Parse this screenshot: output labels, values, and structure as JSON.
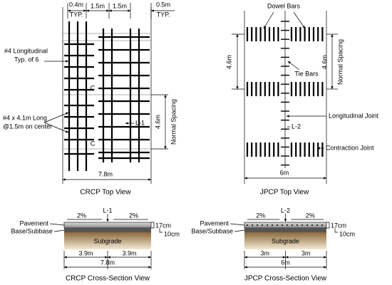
{
  "crcp_top": {
    "dim_left": "0.4m",
    "typ_left": "TYP.",
    "dim_mid_a": "1.5m",
    "dim_mid_b": "1.5m",
    "dim_right": "0.5m",
    "typ_right": "TYP.",
    "longitudinal": [
      "#4 Longitudinal",
      "Typ. of 6"
    ],
    "c_upper": "C",
    "c_lower": "C",
    "section": "L-1",
    "transverse": [
      "#4 x 4.1m Long",
      "@1.5m on center"
    ],
    "spacing_dim": "4.6m",
    "spacing_label": "Normal Spacing",
    "width": "7.8m",
    "caption": "CRCP Top View"
  },
  "jpcp_top": {
    "dowel": "Dowel Bars",
    "spacing_dim_left": "4.6m",
    "tie": "Tie Bars",
    "spacing_dim_right": "4.6m",
    "spacing_label": "Normal Spacing",
    "long_joint": "Longitudinal Joint",
    "section": "L-2",
    "contraction": "Contraction Joint",
    "width": "6m",
    "caption": "JPCP Top View"
  },
  "crcp_section": {
    "section": "L-1",
    "slope_left": "2%",
    "slope_right": "2%",
    "pavement": "Pavement",
    "base": "Base/Subbase",
    "pavement_depth": "17cm",
    "base_depth": "10cm",
    "subgrade": "Subgrade",
    "half_left": "3.9m",
    "half_right": "3.9m",
    "width": "7.8m",
    "caption": "CRCP Cross-Section View"
  },
  "jpcp_section": {
    "section": "L-2",
    "slope_left": "2%",
    "slope_right": "2%",
    "pavement": "Pavement",
    "base": "Base/Subbase",
    "pavement_depth": "17cm",
    "base_depth": "10cm",
    "subgrade": "Subgrade",
    "half_left": "3m",
    "half_right": "3m",
    "width": "6m",
    "caption": "JPCP Cross-Section View"
  }
}
